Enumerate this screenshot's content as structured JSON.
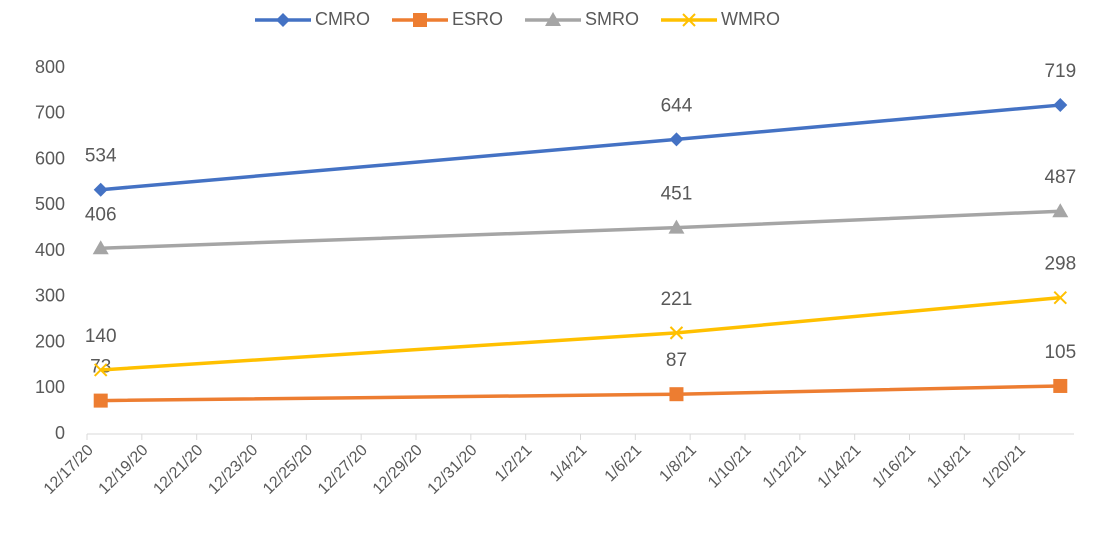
{
  "chart_data": {
    "type": "line",
    "x": [
      "12/17/20",
      "1/7/21",
      "1/21/21"
    ],
    "series": [
      {
        "name": "CMRO",
        "color": "#4472c4",
        "marker": "diamond",
        "values": [
          534,
          644,
          719
        ]
      },
      {
        "name": "ESRO",
        "color": "#ed7d31",
        "marker": "square",
        "values": [
          73,
          87,
          105
        ]
      },
      {
        "name": "SMRO",
        "color": "#a5a5a5",
        "marker": "triangle",
        "values": [
          406,
          451,
          487
        ]
      },
      {
        "name": "WMRO",
        "color": "#ffc000",
        "marker": "x",
        "values": [
          140,
          221,
          298
        ]
      }
    ],
    "xlim": [
      "12/17/20",
      "1/22/21"
    ],
    "xticks": [
      "12/17/20",
      "12/19/20",
      "12/21/20",
      "12/23/20",
      "12/25/20",
      "12/27/20",
      "12/29/20",
      "12/31/20",
      "1/2/21",
      "1/4/21",
      "1/6/21",
      "1/8/21",
      "1/10/21",
      "1/12/21",
      "1/14/21",
      "1/16/21",
      "1/18/21",
      "1/20/21"
    ],
    "ylim": [
      0,
      800
    ],
    "yticks": [
      0,
      100,
      200,
      300,
      400,
      500,
      600,
      700,
      800
    ],
    "legend": "top",
    "data_labels": true
  }
}
